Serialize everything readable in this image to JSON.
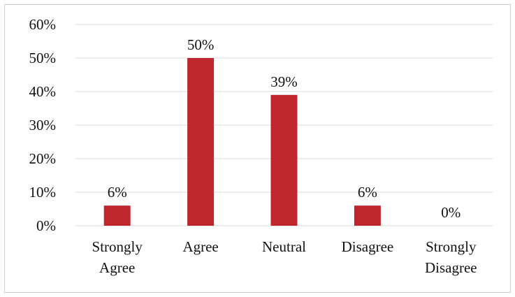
{
  "chart_data": {
    "type": "bar",
    "categories": [
      [
        "Strongly",
        "Agree"
      ],
      [
        "Agree"
      ],
      [
        "Neutral"
      ],
      [
        "Disagree"
      ],
      [
        "Strongly",
        "Disagree"
      ]
    ],
    "values": [
      6,
      50,
      39,
      6,
      0
    ],
    "data_labels": [
      "6%",
      "50%",
      "39%",
      "6%",
      "0%"
    ],
    "y_ticks": [
      "0%",
      "10%",
      "20%",
      "30%",
      "40%",
      "50%",
      "60%"
    ],
    "ylim": [
      0,
      60
    ],
    "grid": true,
    "legend": "none",
    "bar_color": "#c0262d"
  }
}
